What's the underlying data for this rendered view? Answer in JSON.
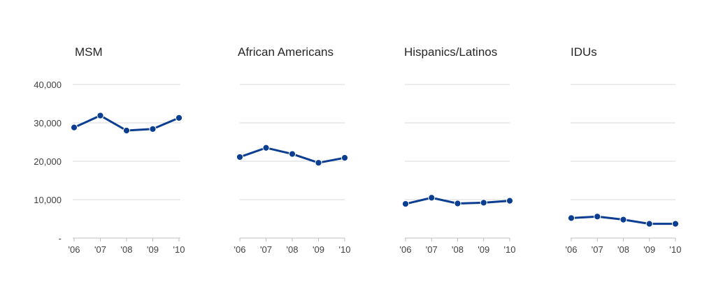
{
  "chart_data": {
    "type": "line",
    "categories": [
      "'06",
      "'07",
      "'08",
      "'09",
      "'10"
    ],
    "ylim": [
      0,
      40000
    ],
    "yticks": [
      0,
      10000,
      20000,
      30000,
      40000
    ],
    "ytick_labels": [
      "-",
      "10,000",
      "20,000",
      "30,000",
      "40,000"
    ],
    "grid": true,
    "line_color": "#0b3d91",
    "panels": [
      {
        "title": "MSM",
        "values": [
          28800,
          31900,
          28000,
          28400,
          31300
        ]
      },
      {
        "title": "African Americans",
        "values": [
          21100,
          23500,
          21900,
          19600,
          20900
        ]
      },
      {
        "title": "Hispanics/Latinos",
        "values": [
          8900,
          10500,
          9000,
          9200,
          9700
        ]
      },
      {
        "title": "IDUs",
        "values": [
          5200,
          5600,
          4800,
          3700,
          3700
        ]
      }
    ]
  }
}
